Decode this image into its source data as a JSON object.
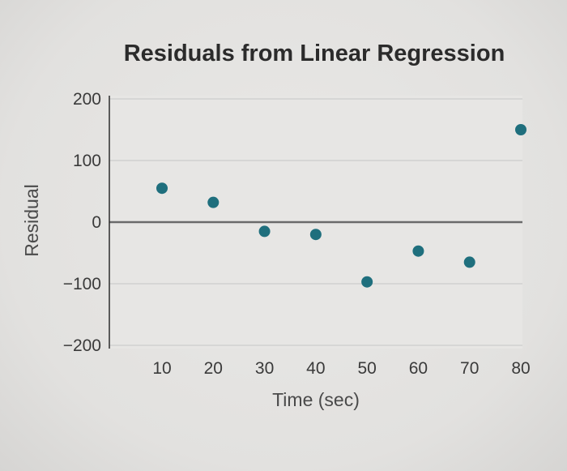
{
  "chart_data": {
    "type": "scatter",
    "title": "Residuals from Linear Regression",
    "xlabel": "Time (sec)",
    "ylabel": "Residual",
    "x": [
      10,
      20,
      30,
      40,
      50,
      60,
      70,
      80
    ],
    "y": [
      55,
      32,
      -15,
      -20,
      -97,
      -47,
      -65,
      150
    ],
    "x_ticks": [
      "10",
      "20",
      "30",
      "40",
      "50",
      "60",
      "70",
      "80"
    ],
    "y_ticks": [
      "200",
      "100",
      "0",
      "−100",
      "−200"
    ],
    "y_tick_values": [
      200,
      100,
      0,
      -100,
      -200
    ],
    "xlim": [
      0,
      80
    ],
    "ylim": [
      -200,
      200
    ],
    "zero_line": true,
    "grid": true,
    "colors": {
      "point": "#1f6f7d",
      "zero_line": "#6a6a6a",
      "grid": "#d0d0d0",
      "plot_bg": "#e7e6e4"
    }
  }
}
